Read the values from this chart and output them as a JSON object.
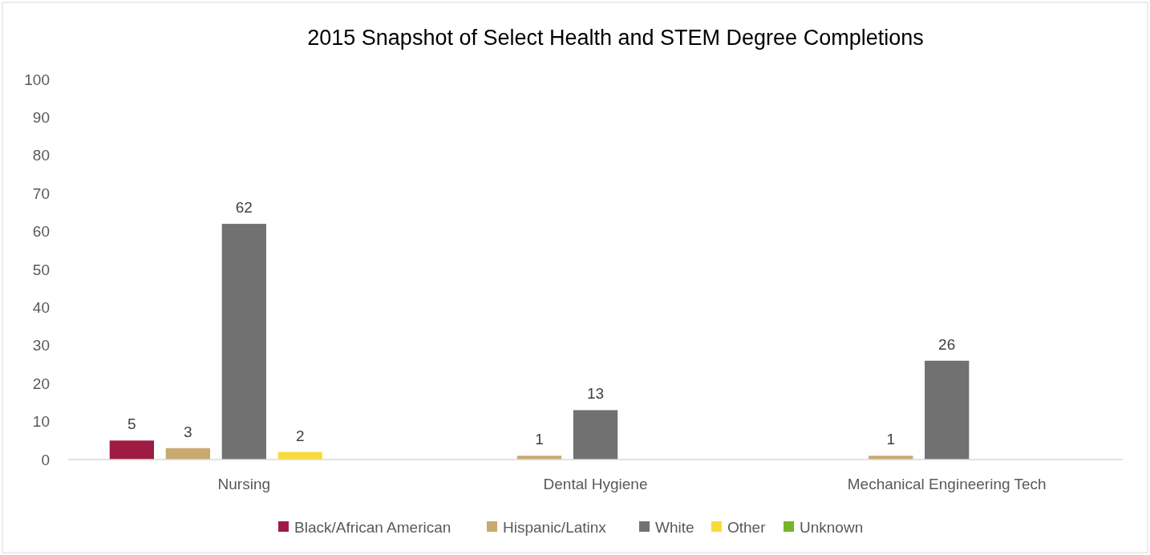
{
  "chart_data": {
    "type": "bar",
    "title": "2015 Snapshot of Select Health and STEM Degree Completions",
    "categories": [
      "Nursing",
      "Dental Hygiene",
      "Mechanical Engineering Tech"
    ],
    "series": [
      {
        "name": "Black/African American",
        "color": "#9e1c43",
        "values": [
          5,
          null,
          null
        ]
      },
      {
        "name": "Hispanic/Latinx",
        "color": "#c8a96e",
        "values": [
          3,
          1,
          1
        ]
      },
      {
        "name": "White",
        "color": "#717171",
        "values": [
          62,
          13,
          26
        ]
      },
      {
        "name": "Other",
        "color": "#f9dc3a",
        "values": [
          2,
          null,
          null
        ]
      },
      {
        "name": "Unknown",
        "color": "#74b52a",
        "values": [
          null,
          null,
          null
        ]
      }
    ],
    "ylim": [
      0,
      100
    ],
    "yticks": [
      0,
      10,
      20,
      30,
      40,
      50,
      60,
      70,
      80,
      90,
      100
    ],
    "grid": false,
    "legend": "bottom",
    "data_labels": true
  }
}
